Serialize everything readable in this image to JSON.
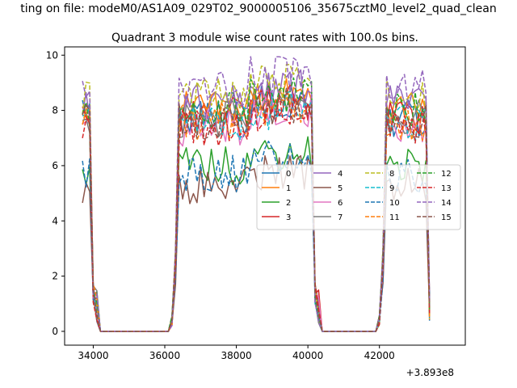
{
  "figure_title": "ting on file: modeM0/AS1A09_029T02_9000005106_35675cztM0_level2_quad_clean",
  "chart_data": {
    "type": "line",
    "title": "Quadrant 3 module wise count rates with 100.0s bins.",
    "xlabel": "",
    "ylabel": "",
    "x_offset_label": "+3.893e8",
    "xlim": [
      33200,
      44400
    ],
    "ylim": [
      -0.5,
      10.3
    ],
    "xticks": [
      34000,
      36000,
      38000,
      40000,
      42000
    ],
    "xtick_labels": [
      "34000",
      "36000",
      "38000",
      "40000",
      "42000"
    ],
    "yticks": [
      0,
      2,
      4,
      6,
      8,
      10
    ],
    "ytick_labels": [
      "0",
      "2",
      "4",
      "6",
      "8",
      "10"
    ],
    "grid": false,
    "legend_position": "center-right",
    "legend_columns": 4,
    "x": [
      33700,
      33800,
      33900,
      34000,
      34100,
      34200,
      34300,
      34400,
      34500,
      34600,
      34700,
      34800,
      34900,
      35000,
      35100,
      35200,
      35300,
      35400,
      35500,
      35600,
      35700,
      35800,
      35900,
      36000,
      36100,
      36200,
      36300,
      36400,
      36500,
      36600,
      36700,
      36800,
      36900,
      37000,
      37100,
      37200,
      37300,
      37400,
      37500,
      37600,
      37700,
      37800,
      37900,
      38000,
      38100,
      38200,
      38300,
      38400,
      38500,
      38600,
      38700,
      38800,
      38900,
      39000,
      39100,
      39200,
      39300,
      39400,
      39500,
      39600,
      39700,
      39800,
      39900,
      40000,
      40100,
      40200,
      40300,
      40400,
      40500,
      40600,
      40700,
      40800,
      40900,
      41000,
      41100,
      41200,
      41300,
      41400,
      41500,
      41600,
      41700,
      41800,
      41900,
      42000,
      42100,
      42200,
      42300,
      42400,
      42500,
      42600,
      42700,
      42800,
      42900,
      43000,
      43100,
      43200,
      43300,
      43400
    ],
    "segments": [
      {
        "start": 33700,
        "end": 34100
      },
      {
        "start": 36200,
        "end": 40300
      },
      {
        "start": 42000,
        "end": 43400
      }
    ],
    "series": [
      {
        "name": "0",
        "color": "#1f77b4",
        "dash": "solid",
        "low": 7.3
      },
      {
        "name": "1",
        "color": "#ff7f0e",
        "dash": "solid",
        "low": 7.6
      },
      {
        "name": "2",
        "color": "#2ca02c",
        "dash": "solid",
        "low": 5.6
      },
      {
        "name": "3",
        "color": "#d62728",
        "dash": "solid",
        "low": 7.4
      },
      {
        "name": "4",
        "color": "#9467bd",
        "dash": "solid",
        "low": 7.9
      },
      {
        "name": "5",
        "color": "#8c564b",
        "dash": "solid",
        "low": 4.9
      },
      {
        "name": "6",
        "color": "#e377c2",
        "dash": "solid",
        "low": 7.0
      },
      {
        "name": "7",
        "color": "#7f7f7f",
        "dash": "solid",
        "low": 7.3
      },
      {
        "name": "8",
        "color": "#bcbd22",
        "dash": "dashed",
        "low": 8.1
      },
      {
        "name": "9",
        "color": "#17becf",
        "dash": "dashed",
        "low": 7.1
      },
      {
        "name": "10",
        "color": "#1f77b4",
        "dash": "dashed",
        "low": 5.3
      },
      {
        "name": "11",
        "color": "#ff7f0e",
        "dash": "dashed",
        "low": 7.2
      },
      {
        "name": "12",
        "color": "#2ca02c",
        "dash": "dashed",
        "low": 7.6
      },
      {
        "name": "13",
        "color": "#d62728",
        "dash": "dashed",
        "low": 7.0
      },
      {
        "name": "14",
        "color": "#9467bd",
        "dash": "dashed",
        "low": 8.4
      },
      {
        "name": "15",
        "color": "#8c564b",
        "dash": "dashed",
        "low": 7.2
      }
    ]
  }
}
